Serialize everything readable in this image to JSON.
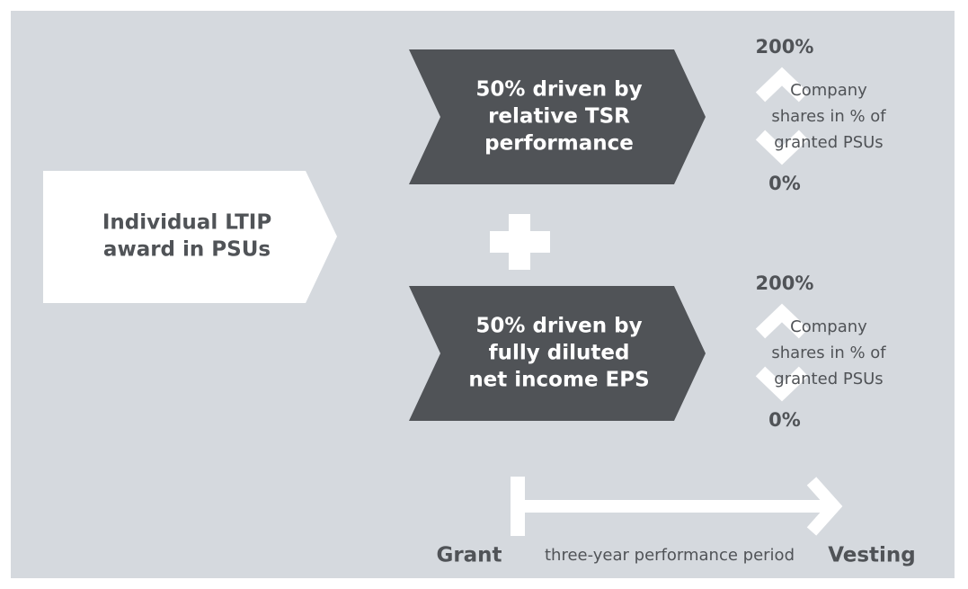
{
  "award": {
    "lines": [
      "Individual LTIP",
      "award in PSUs"
    ]
  },
  "components": [
    {
      "lines": [
        "50% driven by",
        "relative TSR",
        "performance"
      ],
      "max": "200%",
      "min": "0%",
      "note": [
        "Company",
        "shares in % of",
        "granted PSUs"
      ]
    },
    {
      "lines": [
        "50% driven by",
        "fully diluted",
        "net income EPS"
      ],
      "max": "200%",
      "min": "0%",
      "note": [
        "Company",
        "shares in % of",
        "granted PSUs"
      ]
    }
  ],
  "timeline": {
    "start": "Grant",
    "period": "three-year performance period",
    "end": "Vesting"
  }
}
